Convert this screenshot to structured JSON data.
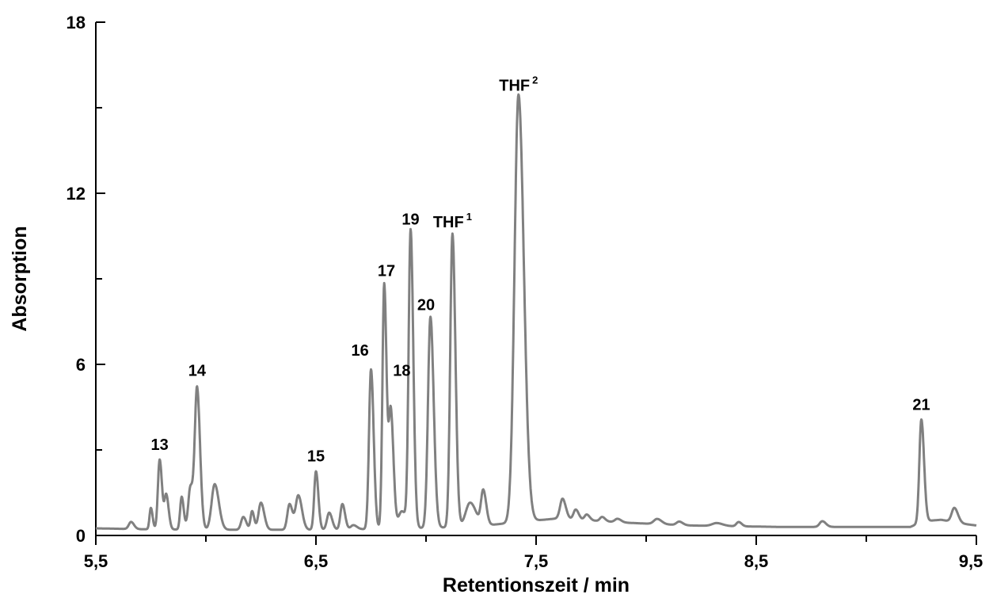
{
  "chart_data": {
    "type": "line",
    "xlabel": "Retentionszeit / min",
    "ylabel": "Absorption",
    "xlim": [
      5.5,
      9.5
    ],
    "ylim": [
      0,
      18
    ],
    "x_ticks": [
      "5,5",
      "6,5",
      "7,5",
      "8,5",
      "9,5"
    ],
    "x_tick_values": [
      5.5,
      6.5,
      7.5,
      8.5,
      9.5
    ],
    "y_ticks": [
      "0",
      "6",
      "12",
      "18"
    ],
    "y_tick_values": [
      0,
      6,
      12,
      18
    ],
    "grid": false,
    "line_color": "#808080",
    "baseline": [
      [
        5.5,
        0.25
      ],
      [
        5.7,
        0.22
      ],
      [
        6.0,
        0.2
      ],
      [
        6.6,
        0.2
      ],
      [
        6.9,
        0.25
      ],
      [
        7.2,
        0.3
      ],
      [
        7.6,
        0.6
      ],
      [
        7.9,
        0.45
      ],
      [
        8.2,
        0.35
      ],
      [
        8.6,
        0.3
      ],
      [
        9.2,
        0.3
      ],
      [
        9.26,
        0.5
      ],
      [
        9.34,
        0.55
      ],
      [
        9.45,
        0.4
      ],
      [
        9.5,
        0.35
      ]
    ],
    "peaks": [
      {
        "x": 5.66,
        "h": 0.25,
        "w": 0.01
      },
      {
        "x": 5.75,
        "h": 0.75,
        "w": 0.006
      },
      {
        "x": 5.79,
        "h": 2.45,
        "w": 0.008
      },
      {
        "x": 5.82,
        "h": 1.2,
        "w": 0.008
      },
      {
        "x": 5.89,
        "h": 1.15,
        "w": 0.007
      },
      {
        "x": 5.93,
        "h": 1.5,
        "w": 0.01
      },
      {
        "x": 5.96,
        "h": 4.9,
        "w": 0.01
      },
      {
        "x": 6.04,
        "h": 1.6,
        "w": 0.014
      },
      {
        "x": 6.17,
        "h": 0.45,
        "w": 0.01
      },
      {
        "x": 6.21,
        "h": 0.65,
        "w": 0.007
      },
      {
        "x": 6.25,
        "h": 0.95,
        "w": 0.011
      },
      {
        "x": 6.38,
        "h": 0.9,
        "w": 0.01
      },
      {
        "x": 6.42,
        "h": 1.2,
        "w": 0.012
      },
      {
        "x": 6.5,
        "h": 2.05,
        "w": 0.008
      },
      {
        "x": 6.56,
        "h": 0.6,
        "w": 0.01
      },
      {
        "x": 6.62,
        "h": 0.9,
        "w": 0.009
      },
      {
        "x": 6.67,
        "h": 0.15,
        "w": 0.012
      },
      {
        "x": 6.75,
        "h": 5.6,
        "w": 0.009
      },
      {
        "x": 6.81,
        "h": 8.6,
        "w": 0.008
      },
      {
        "x": 6.84,
        "h": 4.1,
        "w": 0.009
      },
      {
        "x": 6.89,
        "h": 0.6,
        "w": 0.015
      },
      {
        "x": 6.93,
        "h": 10.4,
        "w": 0.009
      },
      {
        "x": 7.02,
        "h": 7.4,
        "w": 0.011
      },
      {
        "x": 7.12,
        "h": 10.3,
        "w": 0.01
      },
      {
        "x": 7.2,
        "h": 0.85,
        "w": 0.02
      },
      {
        "x": 7.26,
        "h": 1.2,
        "w": 0.01
      },
      {
        "x": 7.42,
        "h": 15.0,
        "w": 0.018
      },
      {
        "x": 7.62,
        "h": 0.7,
        "w": 0.011
      },
      {
        "x": 7.68,
        "h": 0.35,
        "w": 0.01
      },
      {
        "x": 7.73,
        "h": 0.2,
        "w": 0.01
      },
      {
        "x": 7.8,
        "h": 0.15,
        "w": 0.01
      },
      {
        "x": 7.87,
        "h": 0.12,
        "w": 0.012
      },
      {
        "x": 8.05,
        "h": 0.18,
        "w": 0.015
      },
      {
        "x": 8.15,
        "h": 0.12,
        "w": 0.012
      },
      {
        "x": 8.32,
        "h": 0.1,
        "w": 0.02
      },
      {
        "x": 8.42,
        "h": 0.15,
        "w": 0.01
      },
      {
        "x": 8.8,
        "h": 0.2,
        "w": 0.012
      },
      {
        "x": 9.25,
        "h": 3.6,
        "w": 0.009
      },
      {
        "x": 9.4,
        "h": 0.5,
        "w": 0.012
      }
    ],
    "annotations": [
      {
        "text": "13",
        "sup": "",
        "x": 5.79,
        "y": 3.0
      },
      {
        "text": "14",
        "sup": "",
        "x": 5.96,
        "y": 5.6
      },
      {
        "text": "15",
        "sup": "",
        "x": 6.5,
        "y": 2.6
      },
      {
        "text": "16",
        "sup": "",
        "x": 6.7,
        "y": 6.3
      },
      {
        "text": "17",
        "sup": "",
        "x": 6.82,
        "y": 9.1
      },
      {
        "text": "18",
        "sup": "",
        "x": 6.89,
        "y": 5.6
      },
      {
        "text": "19",
        "sup": "",
        "x": 6.93,
        "y": 10.9
      },
      {
        "text": "20",
        "sup": "",
        "x": 7.0,
        "y": 7.9
      },
      {
        "text": "THF",
        "sup": "1",
        "x": 7.12,
        "y": 10.8
      },
      {
        "text": "THF",
        "sup": "2",
        "x": 7.42,
        "y": 15.6
      },
      {
        "text": "21",
        "sup": "",
        "x": 9.25,
        "y": 4.4
      }
    ]
  }
}
